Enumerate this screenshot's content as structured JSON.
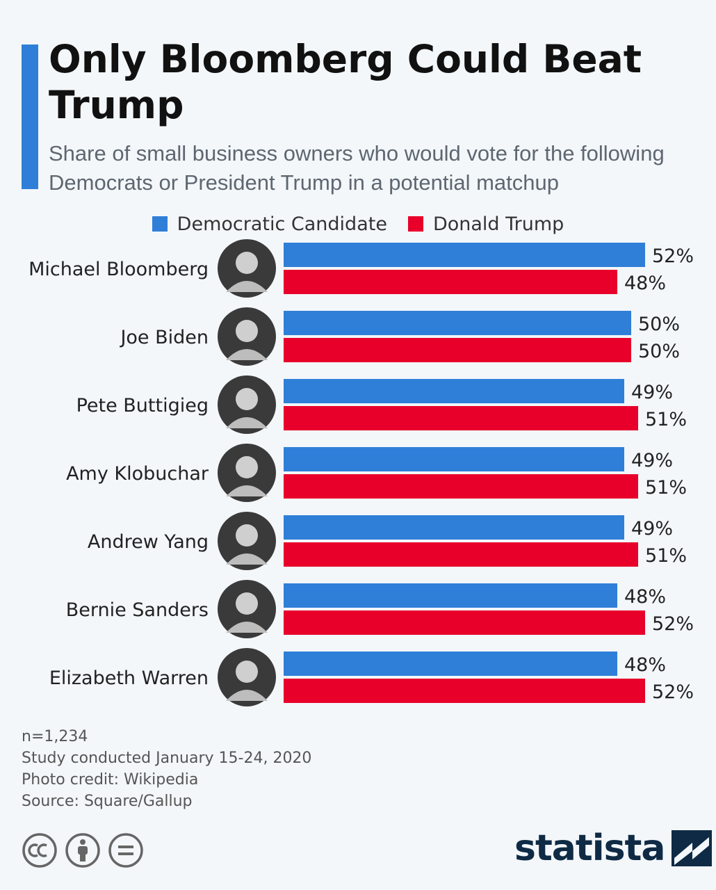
{
  "header": {
    "title": "Only Bloomberg Could Beat Trump",
    "subtitle": "Share of small business owners who would vote for the following Democrats or President Trump in a potential matchup"
  },
  "legend": [
    {
      "label": "Democratic Candidate",
      "color": "#2f7fd8"
    },
    {
      "label": "Donald Trump",
      "color": "#e8002b"
    }
  ],
  "chart_data": {
    "type": "bar",
    "orientation": "horizontal",
    "categories": [
      "Michael Bloomberg",
      "Joe Biden",
      "Pete Buttigieg",
      "Amy Klobuchar",
      "Andrew Yang",
      "Bernie Sanders",
      "Elizabeth Warren"
    ],
    "series": [
      {
        "name": "Democratic Candidate",
        "color": "#2f7fd8",
        "values": [
          52,
          50,
          49,
          49,
          49,
          48,
          48
        ]
      },
      {
        "name": "Donald Trump",
        "color": "#e8002b",
        "values": [
          48,
          50,
          51,
          51,
          51,
          52,
          52
        ]
      }
    ],
    "value_suffix": "%",
    "grid": false,
    "legend_position": "top"
  },
  "footer": {
    "lines": [
      "n=1,234",
      "Study conducted January 15-24, 2020",
      "Photo credit: Wikipedia",
      "Source: Square/Gallup"
    ]
  },
  "icons": [
    "cc-icon",
    "attribution-icon",
    "no-derivatives-icon",
    "statista-logo-icon"
  ],
  "brand": {
    "name": "statista",
    "color": "#0f2a44"
  }
}
